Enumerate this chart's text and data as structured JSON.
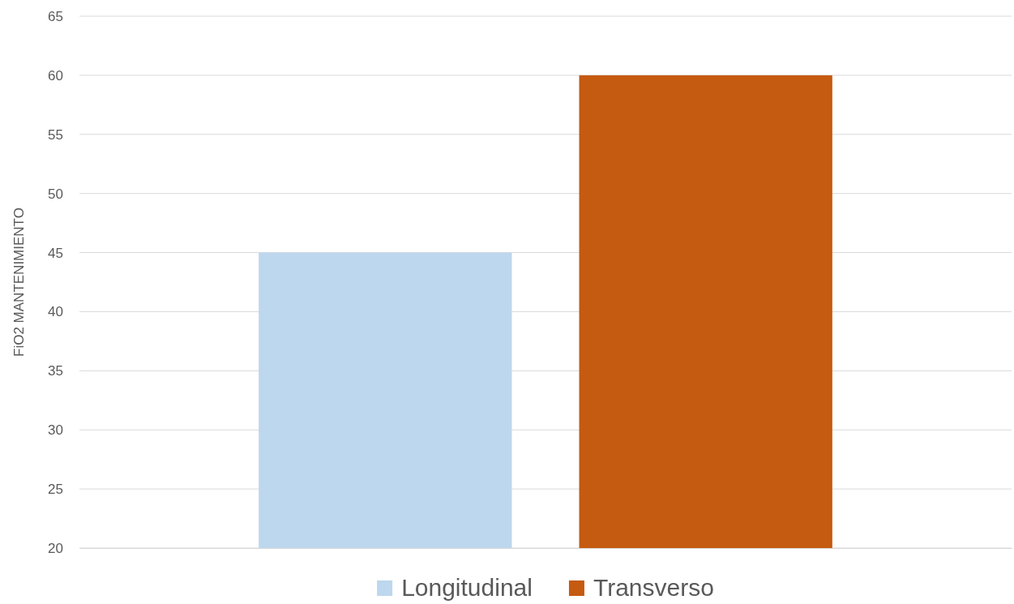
{
  "chart_data": {
    "type": "bar",
    "ylabel": "FiO2 MANTENIMIENTO",
    "categories": [
      null
    ],
    "series": [
      {
        "name": "Longitudinal",
        "color": "#bdd7ee",
        "values": [
          45
        ]
      },
      {
        "name": "Transverso",
        "color": "#c55a11",
        "values": [
          60
        ]
      }
    ],
    "ylim": [
      20,
      65
    ],
    "yticks": [
      20,
      25,
      30,
      35,
      40,
      45,
      50,
      55,
      60,
      65
    ],
    "grid": "y",
    "legend": "bottom"
  }
}
